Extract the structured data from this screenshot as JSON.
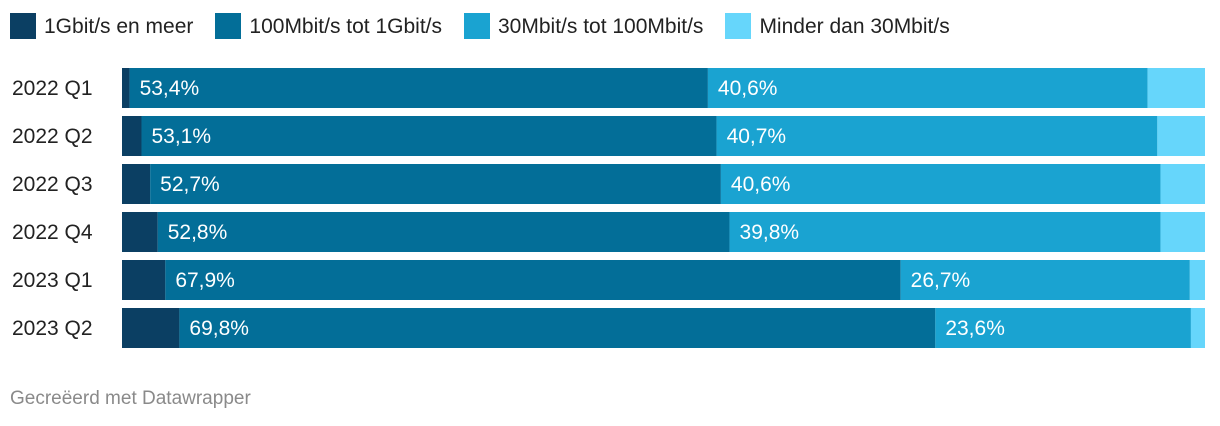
{
  "chart_data": {
    "type": "bar",
    "orientation": "horizontal",
    "stacked": true,
    "categories": [
      "2022 Q1",
      "2022 Q2",
      "2022 Q3",
      "2022 Q4",
      "2023 Q1",
      "2023 Q2"
    ],
    "series": [
      {
        "name": "1Gbit/s en meer",
        "color": "#0b3f63",
        "values": [
          0.7,
          1.8,
          2.6,
          3.3,
          4.0,
          5.3
        ],
        "labels": [
          "",
          "",
          "",
          "",
          "",
          ""
        ]
      },
      {
        "name": "100Mbit/s tot 1Gbit/s",
        "color": "#036e98",
        "values": [
          53.4,
          53.1,
          52.7,
          52.8,
          67.9,
          69.8
        ],
        "labels": [
          "53,4%",
          "53,1%",
          "52,7%",
          "52,8%",
          "67,9%",
          "69,8%"
        ]
      },
      {
        "name": "30Mbit/s tot 100Mbit/s",
        "color": "#1aa3d1",
        "values": [
          40.6,
          40.7,
          40.6,
          39.8,
          26.7,
          23.6
        ],
        "labels": [
          "40,6%",
          "40,7%",
          "40,6%",
          "39,8%",
          "26,7%",
          "23,6%"
        ]
      },
      {
        "name": "Minder dan 30Mbit/s",
        "color": "#66d6fb",
        "values": [
          5.3,
          4.4,
          4.1,
          4.1,
          1.4,
          1.3
        ],
        "labels": [
          "",
          "",
          "",
          "",
          "",
          ""
        ]
      }
    ],
    "xlim": [
      0,
      100
    ],
    "grid": false,
    "legend_position": "top-left",
    "title": "",
    "xlabel": "",
    "ylabel": ""
  },
  "footer": {
    "text": "Gecreëerd met Datawrapper"
  }
}
